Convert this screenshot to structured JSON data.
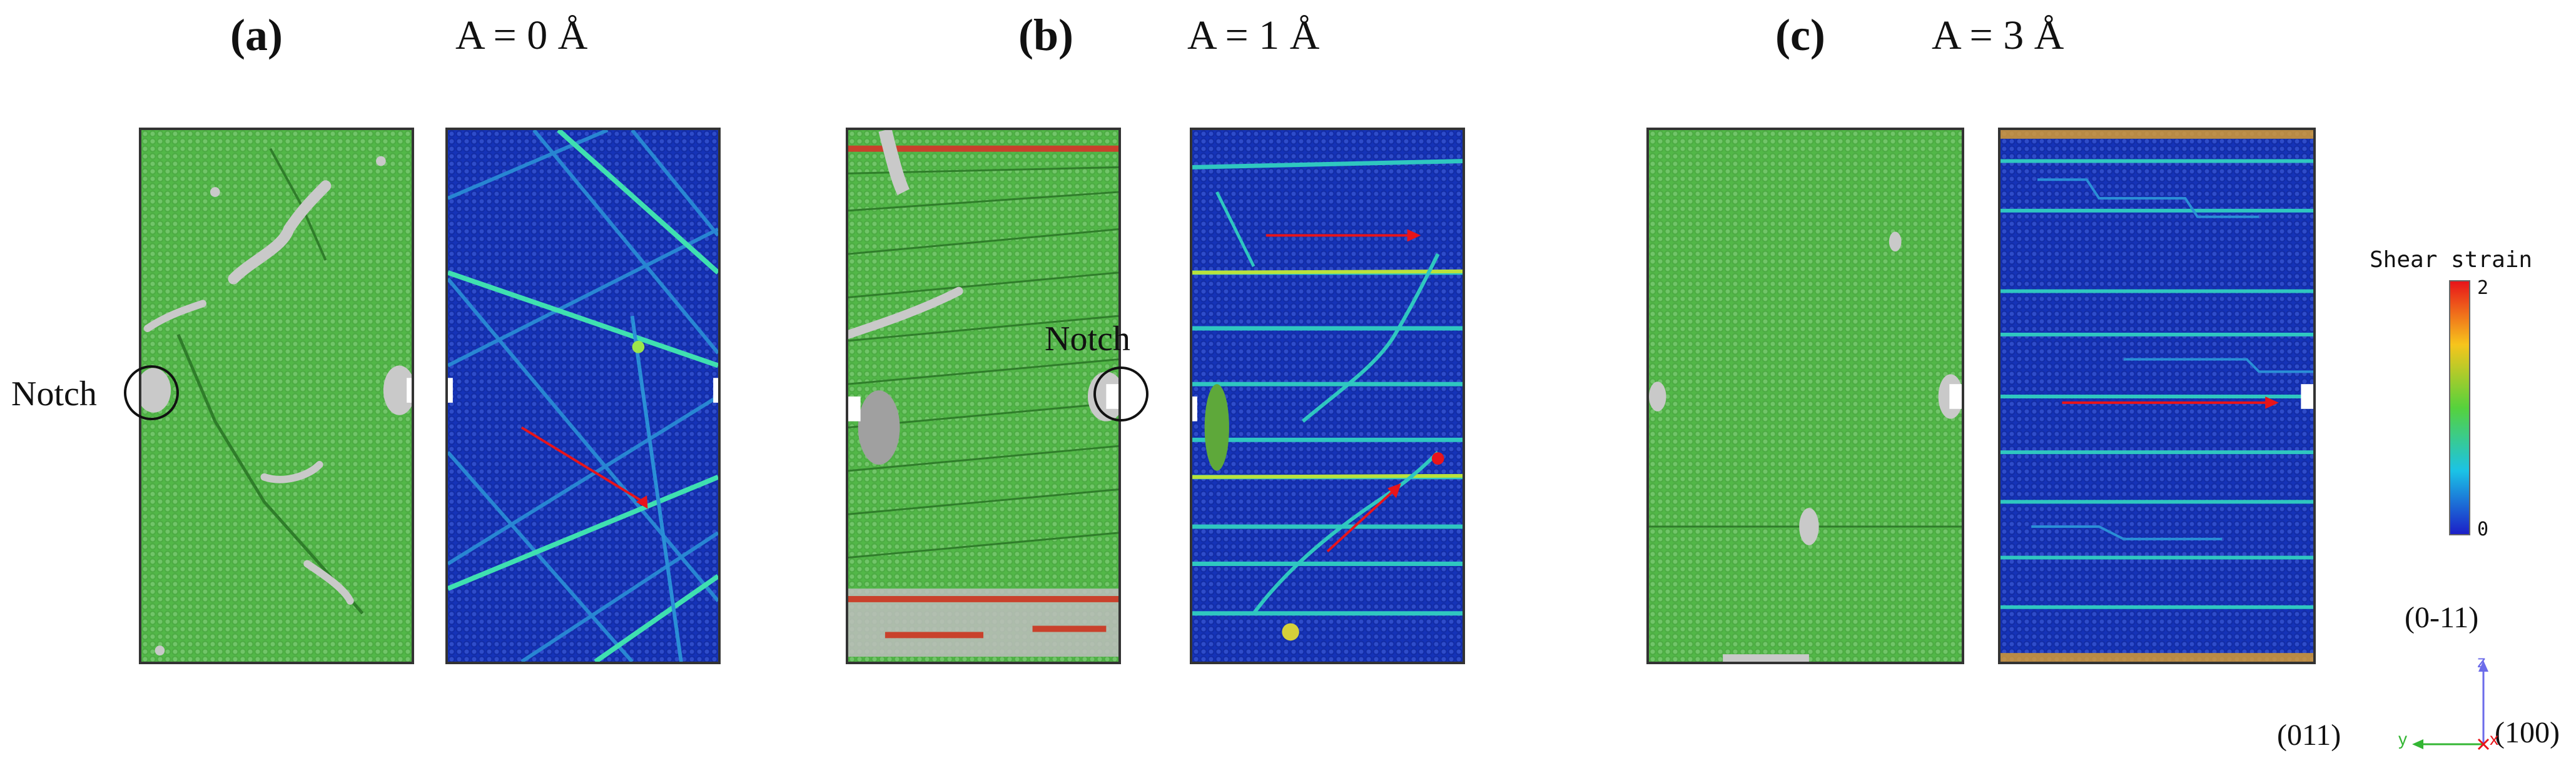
{
  "panels": [
    {
      "label": "(a)",
      "title": "A = 0 Å"
    },
    {
      "label": "(b)",
      "title": "A = 1 Å"
    },
    {
      "label": "(c)",
      "title": "A = 3 Å"
    }
  ],
  "annotations": {
    "notch_a": "Notch",
    "notch_b": "Notch"
  },
  "colorbar": {
    "title": "Shear strain",
    "max": "2",
    "min": "0",
    "colors": [
      "#e8141a",
      "#f7c51c",
      "#56d23c",
      "#1bc3e6",
      "#1c1fc8"
    ]
  },
  "orientation": {
    "z_direction": "(0-11)",
    "y_direction": "(011)",
    "x_direction": "(100)",
    "axis_z": "z",
    "axis_y": "y",
    "axis_x": "x"
  },
  "colors": {
    "fcc_atoms": "#52b848",
    "other_atoms": "#c8c8c8",
    "low_strain": "#1533b8",
    "arrow": "#e8141a"
  }
}
